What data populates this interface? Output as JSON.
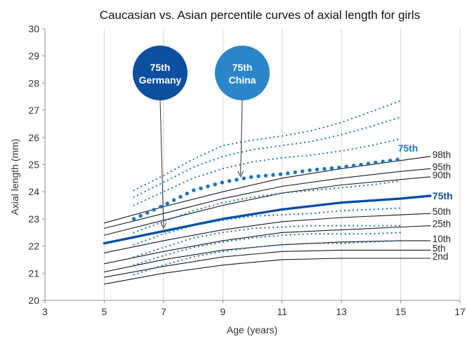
{
  "chart_data": {
    "type": "line",
    "title": "Caucasian vs. Asian percentile curves of axial length for girls",
    "xlabel": "Age (years)",
    "ylabel": "Axial length (mm)",
    "xlim": [
      3,
      17
    ],
    "ylim": [
      20,
      30
    ],
    "x_ticks": [
      3,
      5,
      7,
      9,
      11,
      13,
      15,
      17
    ],
    "y_ticks": [
      20,
      21,
      22,
      23,
      24,
      25,
      26,
      27,
      28,
      29,
      30
    ],
    "grid": "vertical",
    "series": [
      {
        "name": "98th",
        "group": "germany",
        "color": "#1a1a1a",
        "points": [
          [
            5,
            22.85
          ],
          [
            7,
            23.45
          ],
          [
            9,
            24.0
          ],
          [
            11,
            24.5
          ],
          [
            13,
            24.85
          ],
          [
            15,
            25.15
          ],
          [
            16,
            25.3
          ]
        ]
      },
      {
        "name": "95th",
        "group": "germany",
        "color": "#1a1a1a",
        "points": [
          [
            5,
            22.65
          ],
          [
            7,
            23.2
          ],
          [
            9,
            23.75
          ],
          [
            11,
            24.2
          ],
          [
            13,
            24.5
          ],
          [
            15,
            24.75
          ],
          [
            16,
            24.85
          ]
        ]
      },
      {
        "name": "90th",
        "group": "germany",
        "color": "#1a1a1a",
        "points": [
          [
            5,
            22.4
          ],
          [
            7,
            22.95
          ],
          [
            9,
            23.5
          ],
          [
            11,
            23.95
          ],
          [
            13,
            24.25
          ],
          [
            15,
            24.45
          ],
          [
            16,
            24.55
          ]
        ]
      },
      {
        "name": "75th",
        "group": "germany",
        "color": "#0d4fa0",
        "bold": true,
        "points": [
          [
            5,
            22.1
          ],
          [
            7,
            22.55
          ],
          [
            9,
            23.0
          ],
          [
            11,
            23.35
          ],
          [
            13,
            23.6
          ],
          [
            15,
            23.75
          ],
          [
            16,
            23.85
          ]
        ]
      },
      {
        "name": "50th",
        "group": "germany",
        "color": "#1a1a1a",
        "points": [
          [
            5,
            21.75
          ],
          [
            7,
            22.2
          ],
          [
            9,
            22.6
          ],
          [
            11,
            22.9
          ],
          [
            13,
            23.05
          ],
          [
            15,
            23.15
          ],
          [
            16,
            23.2
          ]
        ]
      },
      {
        "name": "25th",
        "group": "germany",
        "color": "#1a1a1a",
        "points": [
          [
            5,
            21.35
          ],
          [
            7,
            21.8
          ],
          [
            9,
            22.2
          ],
          [
            11,
            22.5
          ],
          [
            13,
            22.6
          ],
          [
            15,
            22.7
          ],
          [
            16,
            22.75
          ]
        ]
      },
      {
        "name": "10th",
        "group": "germany",
        "color": "#1a1a1a",
        "points": [
          [
            5,
            21.05
          ],
          [
            7,
            21.5
          ],
          [
            9,
            21.85
          ],
          [
            11,
            22.05
          ],
          [
            13,
            22.15
          ],
          [
            15,
            22.2
          ],
          [
            16,
            22.2
          ]
        ]
      },
      {
        "name": "5th",
        "group": "germany",
        "color": "#1a1a1a",
        "points": [
          [
            5,
            20.85
          ],
          [
            7,
            21.25
          ],
          [
            9,
            21.6
          ],
          [
            11,
            21.8
          ],
          [
            13,
            21.85
          ],
          [
            15,
            21.85
          ],
          [
            16,
            21.85
          ]
        ]
      },
      {
        "name": "2nd",
        "group": "germany",
        "color": "#1a1a1a",
        "points": [
          [
            5,
            20.6
          ],
          [
            7,
            21.0
          ],
          [
            9,
            21.3
          ],
          [
            11,
            21.5
          ],
          [
            13,
            21.55
          ],
          [
            15,
            21.55
          ],
          [
            16,
            21.55
          ]
        ]
      },
      {
        "name": "",
        "group": "china",
        "color": "#1f77b8",
        "points": [
          [
            6,
            24.05
          ],
          [
            7,
            24.6
          ],
          [
            8,
            25.2
          ],
          [
            9,
            25.7
          ],
          [
            10,
            25.9
          ],
          [
            11,
            26.05
          ],
          [
            12,
            26.25
          ],
          [
            13,
            26.55
          ],
          [
            14,
            26.95
          ],
          [
            15,
            27.35
          ]
        ]
      },
      {
        "name": "",
        "group": "china",
        "color": "#1f77b8",
        "points": [
          [
            6,
            23.8
          ],
          [
            7,
            24.35
          ],
          [
            8,
            24.9
          ],
          [
            9,
            25.3
          ],
          [
            10,
            25.55
          ],
          [
            11,
            25.7
          ],
          [
            12,
            25.85
          ],
          [
            13,
            26.1
          ],
          [
            14,
            26.4
          ],
          [
            15,
            26.75
          ]
        ]
      },
      {
        "name": "",
        "group": "china",
        "color": "#1f77b8",
        "points": [
          [
            6,
            23.5
          ],
          [
            7,
            24.0
          ],
          [
            8,
            24.5
          ],
          [
            9,
            24.85
          ],
          [
            10,
            25.1
          ],
          [
            11,
            25.25
          ],
          [
            12,
            25.35
          ],
          [
            13,
            25.5
          ],
          [
            14,
            25.7
          ],
          [
            15,
            25.95
          ]
        ]
      },
      {
        "name": "75th",
        "group": "china",
        "color": "#1f77b8",
        "bold": true,
        "points": [
          [
            6,
            23.0
          ],
          [
            7,
            23.5
          ],
          [
            8,
            24.05
          ],
          [
            9,
            24.35
          ],
          [
            10,
            24.55
          ],
          [
            11,
            24.65
          ],
          [
            12,
            24.8
          ],
          [
            13,
            24.9
          ],
          [
            14,
            25.05
          ],
          [
            15,
            25.2
          ]
        ]
      },
      {
        "name": "",
        "group": "china",
        "color": "#1f77b8",
        "points": [
          [
            6,
            22.5
          ],
          [
            7,
            22.9
          ],
          [
            8,
            23.3
          ],
          [
            9,
            23.6
          ],
          [
            10,
            23.8
          ],
          [
            11,
            23.95
          ],
          [
            12,
            24.05
          ],
          [
            13,
            24.15
          ],
          [
            14,
            24.25
          ],
          [
            15,
            24.4
          ]
        ]
      },
      {
        "name": "",
        "group": "china",
        "color": "#1f77b8",
        "points": [
          [
            6,
            22.05
          ],
          [
            7,
            22.45
          ],
          [
            8,
            22.75
          ],
          [
            9,
            22.95
          ],
          [
            10,
            23.1
          ],
          [
            11,
            23.15
          ],
          [
            12,
            23.2
          ],
          [
            13,
            23.3
          ],
          [
            14,
            23.35
          ],
          [
            15,
            23.4
          ]
        ]
      },
      {
        "name": "",
        "group": "china",
        "color": "#1f77b8",
        "points": [
          [
            6,
            21.6
          ],
          [
            7,
            21.95
          ],
          [
            8,
            22.3
          ],
          [
            9,
            22.5
          ],
          [
            10,
            22.65
          ],
          [
            11,
            22.7
          ],
          [
            12,
            22.75
          ],
          [
            13,
            22.75
          ],
          [
            14,
            22.75
          ],
          [
            15,
            22.75
          ]
        ]
      },
      {
        "name": "",
        "group": "china",
        "color": "#1f77b8",
        "points": [
          [
            6,
            21.3
          ],
          [
            7,
            21.65
          ],
          [
            8,
            21.95
          ],
          [
            9,
            22.15
          ],
          [
            10,
            22.3
          ],
          [
            11,
            22.4
          ],
          [
            12,
            22.45
          ],
          [
            13,
            22.45
          ],
          [
            14,
            22.45
          ],
          [
            15,
            22.5
          ]
        ]
      },
      {
        "name": "",
        "group": "china",
        "color": "#1f77b8",
        "points": [
          [
            6,
            20.95
          ],
          [
            7,
            21.3
          ],
          [
            8,
            21.6
          ],
          [
            9,
            21.8
          ],
          [
            10,
            21.95
          ],
          [
            11,
            22.05
          ],
          [
            12,
            22.1
          ],
          [
            13,
            22.1
          ],
          [
            14,
            22.15
          ],
          [
            15,
            22.2
          ]
        ]
      }
    ],
    "annotations": [
      {
        "line1": "75th",
        "line2": "Germany",
        "color": "#0d4fa0",
        "target": [
          7,
          22.55
        ]
      },
      {
        "line1": "75th",
        "line2": "China",
        "color": "#2a86c8",
        "target": [
          9.6,
          24.45
        ]
      }
    ]
  }
}
